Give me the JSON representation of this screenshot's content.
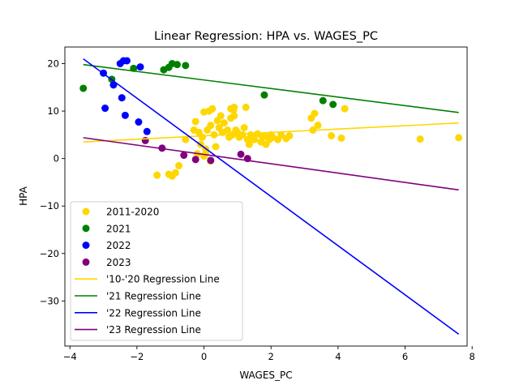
{
  "chart_data": {
    "type": "scatter",
    "title": "Linear Regression: HPA vs. WAGES_PC",
    "xlabel": "WAGES_PC",
    "ylabel": "HPA",
    "xlim": [
      -4.15,
      7.85
    ],
    "ylim": [
      -39.5,
      23.5
    ],
    "xticks": [
      -4,
      -2,
      0,
      2,
      4,
      6,
      8
    ],
    "yticks": [
      -30,
      -20,
      -10,
      0,
      10,
      20
    ],
    "xtick_labels": [
      "−4",
      "−2",
      "0",
      "2",
      "4",
      "6",
      "8"
    ],
    "ytick_labels": [
      "−30",
      "−20",
      "−10",
      "0",
      "10",
      "20"
    ],
    "grid": false,
    "legend_position": "lower-left",
    "series": [
      {
        "name": "2011-2020",
        "color": "#ffd700",
        "points": [
          [
            -1.4,
            -3.5
          ],
          [
            -1.05,
            -3.3
          ],
          [
            -0.95,
            -3.7
          ],
          [
            -0.85,
            -3.0
          ],
          [
            -0.75,
            -1.5
          ],
          [
            -0.55,
            4.0
          ],
          [
            -0.3,
            6.0
          ],
          [
            -0.25,
            7.8
          ],
          [
            -0.15,
            5.5
          ],
          [
            -0.1,
            3.0
          ],
          [
            -0.05,
            4.5
          ],
          [
            0.0,
            9.8
          ],
          [
            0.05,
            1.0
          ],
          [
            0.1,
            6.0
          ],
          [
            0.15,
            10.0
          ],
          [
            0.2,
            7.0
          ],
          [
            0.25,
            10.5
          ],
          [
            0.3,
            5.0
          ],
          [
            0.35,
            2.5
          ],
          [
            0.4,
            8.0
          ],
          [
            0.45,
            6.5
          ],
          [
            0.5,
            9.0
          ],
          [
            0.55,
            5.5
          ],
          [
            0.6,
            7.5
          ],
          [
            0.7,
            6.0
          ],
          [
            0.75,
            4.5
          ],
          [
            0.8,
            8.5
          ],
          [
            0.85,
            5.0
          ],
          [
            0.9,
            9.0
          ],
          [
            0.95,
            6.0
          ],
          [
            0.8,
            10.5
          ],
          [
            0.9,
            10.8
          ],
          [
            0.88,
            10.2
          ],
          [
            1.0,
            5.5
          ],
          [
            1.05,
            4.5
          ],
          [
            1.15,
            5.0
          ],
          [
            1.2,
            6.5
          ],
          [
            1.25,
            10.8
          ],
          [
            1.3,
            4.0
          ],
          [
            1.35,
            3.0
          ],
          [
            1.4,
            5.0
          ],
          [
            1.5,
            4.0
          ],
          [
            1.6,
            5.2
          ],
          [
            1.7,
            3.5
          ],
          [
            1.75,
            4.5
          ],
          [
            1.8,
            4.8
          ],
          [
            1.85,
            3.0
          ],
          [
            1.95,
            4.0
          ],
          [
            2.0,
            5.0
          ],
          [
            2.05,
            4.5
          ],
          [
            2.2,
            4.0
          ],
          [
            2.3,
            5.0
          ],
          [
            2.45,
            4.2
          ],
          [
            2.55,
            4.8
          ],
          [
            3.2,
            8.5
          ],
          [
            3.25,
            6.0
          ],
          [
            3.3,
            9.5
          ],
          [
            3.4,
            7.0
          ],
          [
            3.8,
            4.8
          ],
          [
            4.1,
            4.3
          ],
          [
            4.2,
            10.5
          ],
          [
            6.45,
            4.1
          ],
          [
            7.6,
            4.4
          ],
          [
            -0.2,
            1.0
          ],
          [
            0.05,
            2.0
          ],
          [
            0.2,
            -0.5
          ],
          [
            0.0,
            0.5
          ]
        ]
      },
      {
        "name": "2021",
        "color": "#008000",
        "points": [
          [
            -3.6,
            14.8
          ],
          [
            -2.75,
            16.7
          ],
          [
            -2.1,
            19.0
          ],
          [
            -1.2,
            18.7
          ],
          [
            -1.05,
            19.2
          ],
          [
            -0.95,
            20.0
          ],
          [
            -0.8,
            19.8
          ],
          [
            -0.55,
            19.6
          ],
          [
            1.8,
            13.4
          ],
          [
            3.55,
            12.2
          ],
          [
            3.85,
            11.4
          ]
        ]
      },
      {
        "name": "2022",
        "color": "#0000ff",
        "points": [
          [
            -3.0,
            18.0
          ],
          [
            -2.95,
            10.6
          ],
          [
            -2.7,
            15.5
          ],
          [
            -2.5,
            20.0
          ],
          [
            -2.45,
            12.8
          ],
          [
            -2.4,
            20.6
          ],
          [
            -2.3,
            20.6
          ],
          [
            -2.35,
            9.1
          ],
          [
            -1.95,
            7.7
          ],
          [
            -1.9,
            19.3
          ],
          [
            -1.7,
            5.7
          ]
        ]
      },
      {
        "name": "2023",
        "color": "#800080",
        "points": [
          [
            -1.75,
            3.8
          ],
          [
            -1.25,
            2.2
          ],
          [
            -0.6,
            0.7
          ],
          [
            -0.25,
            -0.2
          ],
          [
            0.2,
            -0.4
          ],
          [
            1.1,
            0.9
          ],
          [
            1.3,
            0.0
          ]
        ]
      }
    ],
    "regression_lines": [
      {
        "name": "'10-'20 Regression Line",
        "color": "#ffd700",
        "x": [
          -3.6,
          7.6
        ],
        "y": [
          3.5,
          7.5
        ]
      },
      {
        "name": "'21 Regression Line",
        "color": "#008000",
        "x": [
          -3.6,
          7.6
        ],
        "y": [
          19.8,
          9.7
        ]
      },
      {
        "name": "'22 Regression Line",
        "color": "#0000ff",
        "x": [
          -3.6,
          7.6
        ],
        "y": [
          21.0,
          -37.0
        ]
      },
      {
        "name": "'23 Regression Line",
        "color": "#800080",
        "x": [
          -3.6,
          7.6
        ],
        "y": [
          4.4,
          -6.6
        ]
      }
    ]
  }
}
